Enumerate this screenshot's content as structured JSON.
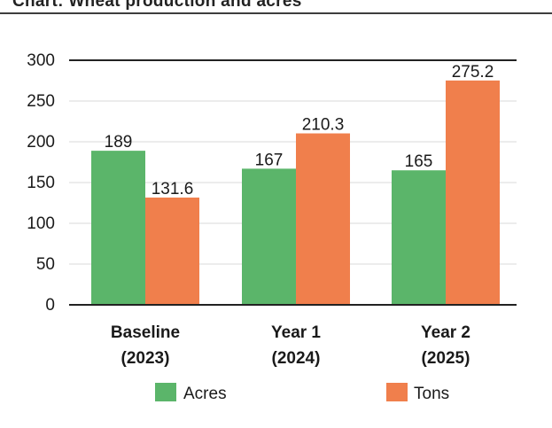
{
  "header_text": "Chart: Wheat production and acres",
  "chart_data": {
    "type": "bar",
    "categories": [
      [
        "Baseline",
        "(2023)"
      ],
      [
        "Year 1",
        "(2024)"
      ],
      [
        "Year 2",
        "(2025)"
      ]
    ],
    "series": [
      {
        "name": "Acres",
        "values": [
          189,
          167,
          165
        ],
        "color": "#5bb56a",
        "labels": [
          "189",
          "167",
          "165"
        ]
      },
      {
        "name": "Tons",
        "values": [
          131.6,
          210.3,
          275.2
        ],
        "color": "#f07f4c",
        "labels": [
          "131.6",
          "210.3",
          "275.2"
        ]
      }
    ],
    "ylim": [
      0,
      300
    ],
    "yticks": [
      "0",
      "50",
      "100",
      "150",
      "200",
      "250",
      "300"
    ],
    "grid": true,
    "legend": "bottom"
  }
}
